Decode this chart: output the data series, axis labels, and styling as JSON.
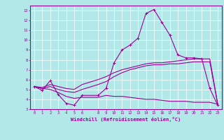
{
  "xlabel": "Windchill (Refroidissement éolien,°C)",
  "bg_color": "#b3e8e8",
  "line_color": "#990099",
  "grid_color": "#ffffff",
  "xlim": [
    -0.5,
    23.5
  ],
  "ylim": [
    3,
    13.5
  ],
  "yticks": [
    3,
    4,
    5,
    6,
    7,
    8,
    9,
    10,
    11,
    12,
    13
  ],
  "xticks": [
    0,
    1,
    2,
    3,
    4,
    5,
    6,
    8,
    9,
    10,
    11,
    12,
    13,
    14,
    15,
    16,
    17,
    18,
    19,
    20,
    21,
    22,
    23
  ],
  "curve1_x": [
    0,
    1,
    2,
    3,
    4,
    5,
    6,
    8,
    9,
    10,
    11,
    12,
    13,
    14,
    15,
    16,
    17,
    18,
    19,
    20,
    21,
    22,
    23
  ],
  "curve1_y": [
    5.3,
    4.9,
    5.9,
    4.5,
    3.6,
    3.4,
    4.4,
    4.4,
    5.1,
    7.7,
    9.0,
    9.5,
    10.2,
    12.7,
    13.1,
    11.8,
    10.5,
    8.5,
    8.2,
    8.2,
    8.1,
    5.1,
    3.4
  ],
  "curve2_x": [
    0,
    1,
    2,
    3,
    4,
    5,
    6,
    8,
    9,
    10,
    11,
    12,
    13,
    14,
    15,
    16,
    17,
    18,
    19,
    20,
    21,
    22,
    23
  ],
  "curve2_y": [
    5.3,
    5.2,
    5.5,
    5.3,
    5.1,
    5.0,
    5.5,
    6.0,
    6.3,
    6.7,
    7.0,
    7.2,
    7.4,
    7.6,
    7.7,
    7.7,
    7.8,
    7.9,
    8.0,
    8.1,
    8.1,
    8.1,
    3.5
  ],
  "curve3_x": [
    0,
    1,
    2,
    3,
    4,
    5,
    6,
    8,
    9,
    10,
    11,
    12,
    13,
    14,
    15,
    16,
    17,
    18,
    19,
    20,
    21,
    22,
    23
  ],
  "curve3_y": [
    5.3,
    5.1,
    5.3,
    5.0,
    4.8,
    4.7,
    5.0,
    5.5,
    5.8,
    6.3,
    6.7,
    7.0,
    7.2,
    7.4,
    7.5,
    7.5,
    7.6,
    7.6,
    7.7,
    7.8,
    7.8,
    7.8,
    3.5
  ],
  "curve4_x": [
    0,
    1,
    2,
    3,
    4,
    5,
    6,
    8,
    9,
    10,
    11,
    12,
    13,
    14,
    15,
    16,
    17,
    18,
    19,
    20,
    21,
    22,
    23
  ],
  "curve4_y": [
    5.3,
    5.1,
    5.0,
    4.7,
    4.3,
    4.1,
    4.2,
    4.2,
    4.4,
    4.3,
    4.3,
    4.2,
    4.1,
    4.0,
    4.0,
    3.9,
    3.8,
    3.8,
    3.8,
    3.7,
    3.7,
    3.7,
    3.5
  ]
}
